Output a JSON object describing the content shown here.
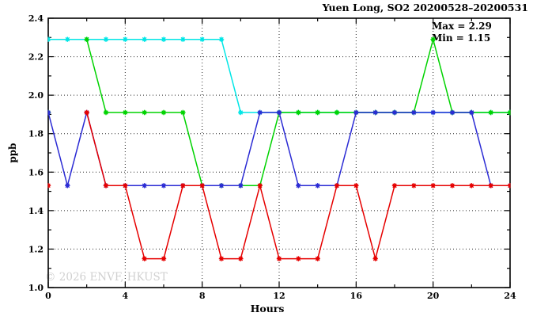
{
  "title": "Yuen Long, SO2 20200528–20200531",
  "annotations": {
    "max": "Max = 2.29",
    "min": "Min = 1.15"
  },
  "watermark": "© 2026 ENVF, HKUST",
  "colors": {
    "cyan_series": "#00e6e6",
    "green_series": "#00d300",
    "blue_series": "#2b2bd4",
    "red_series": "#e60000",
    "watermark_gray": "#d0d0d0",
    "axis_black": "#000000"
  },
  "chart_data": {
    "type": "line",
    "title": "Yuen Long, SO2 20200528–20200531",
    "xlabel": "Hours",
    "ylabel": "ppb",
    "xlim": [
      0,
      24
    ],
    "ylim": [
      1.0,
      2.4
    ],
    "x_major_ticks": [
      0,
      4,
      8,
      12,
      16,
      20,
      24
    ],
    "x_minor_ticks": [
      2,
      6,
      10,
      14,
      18,
      22
    ],
    "y_major_tick_labels": [
      "1.0",
      "1.2",
      "1.4",
      "1.6",
      "1.8",
      "2.0",
      "2.2",
      "2.4"
    ],
    "y_minor_ticks": [
      1.1,
      1.3,
      1.5,
      1.7,
      1.9,
      2.1,
      2.3
    ],
    "grid_x_values": [
      4,
      8,
      12,
      16,
      20
    ],
    "grid_y_values": [
      1.2,
      1.4,
      1.6,
      1.8,
      2.0,
      2.2
    ],
    "legend_position": "none",
    "stats": {
      "max": 2.29,
      "min": 1.15
    },
    "x": [
      0,
      1,
      2,
      3,
      4,
      5,
      6,
      7,
      8,
      9,
      10,
      11,
      12,
      13,
      14,
      15,
      16,
      17,
      18,
      19,
      20,
      21,
      22,
      23,
      24
    ],
    "series": [
      {
        "name": "cyan",
        "color": "#00e6e6",
        "values": [
          2.29,
          2.29,
          2.29,
          2.29,
          2.29,
          2.29,
          2.29,
          2.29,
          2.29,
          2.29,
          1.91,
          1.91,
          1.91,
          1.91,
          1.91,
          1.91,
          1.91,
          1.91,
          1.91,
          1.91,
          1.91,
          1.91,
          1.91,
          1.91,
          1.91
        ]
      },
      {
        "name": "green",
        "color": "#00d300",
        "values": [
          1.91,
          null,
          2.29,
          1.91,
          1.91,
          1.91,
          1.91,
          1.91,
          1.53,
          1.53,
          1.53,
          1.53,
          1.91,
          1.91,
          1.91,
          1.91,
          1.91,
          1.91,
          1.91,
          1.91,
          2.29,
          1.91,
          1.91,
          1.91,
          1.91
        ]
      },
      {
        "name": "blue",
        "color": "#2b2bd4",
        "values": [
          1.91,
          1.53,
          1.91,
          1.53,
          1.53,
          1.53,
          1.53,
          1.53,
          1.53,
          1.53,
          1.53,
          1.91,
          1.91,
          1.53,
          1.53,
          1.53,
          1.91,
          1.91,
          1.91,
          1.91,
          1.91,
          1.91,
          1.91,
          1.53,
          1.53
        ]
      },
      {
        "name": "red",
        "color": "#e60000",
        "values": [
          1.53,
          null,
          1.91,
          1.53,
          1.53,
          1.15,
          1.15,
          1.53,
          1.53,
          1.15,
          1.15,
          1.53,
          1.15,
          1.15,
          1.15,
          1.53,
          1.53,
          1.15,
          1.53,
          1.53,
          1.53,
          1.53,
          1.53,
          1.53,
          1.53
        ]
      }
    ]
  }
}
